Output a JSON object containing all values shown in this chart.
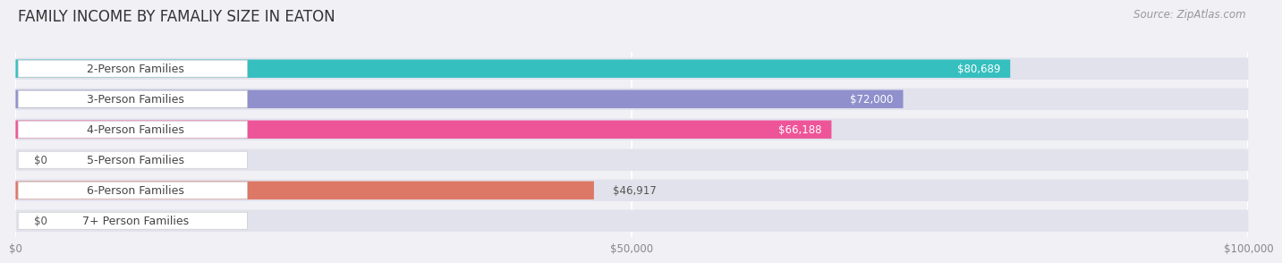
{
  "title": "FAMILY INCOME BY FAMALIY SIZE IN EATON",
  "source": "Source: ZipAtlas.com",
  "categories": [
    "2-Person Families",
    "3-Person Families",
    "4-Person Families",
    "5-Person Families",
    "6-Person Families",
    "7+ Person Families"
  ],
  "values": [
    80689,
    72000,
    66188,
    0,
    46917,
    0
  ],
  "bar_colors": [
    "#36bfbf",
    "#9090cc",
    "#ee5599",
    "#f5bb88",
    "#dd7766",
    "#99bbdd"
  ],
  "bar_labels": [
    "$80,689",
    "$72,000",
    "$66,188",
    "$0",
    "$46,917",
    "$0"
  ],
  "label_inside": [
    true,
    true,
    true,
    false,
    false,
    false
  ],
  "xlim": [
    0,
    100000
  ],
  "xticks": [
    0,
    50000,
    100000
  ],
  "xticklabels": [
    "$0",
    "$50,000",
    "$100,000"
  ],
  "background_color": "#f0f0f5",
  "bar_bg_color": "#e2e2ec",
  "title_fontsize": 12,
  "source_fontsize": 8.5,
  "label_fontsize": 8.5,
  "cat_fontsize": 9
}
